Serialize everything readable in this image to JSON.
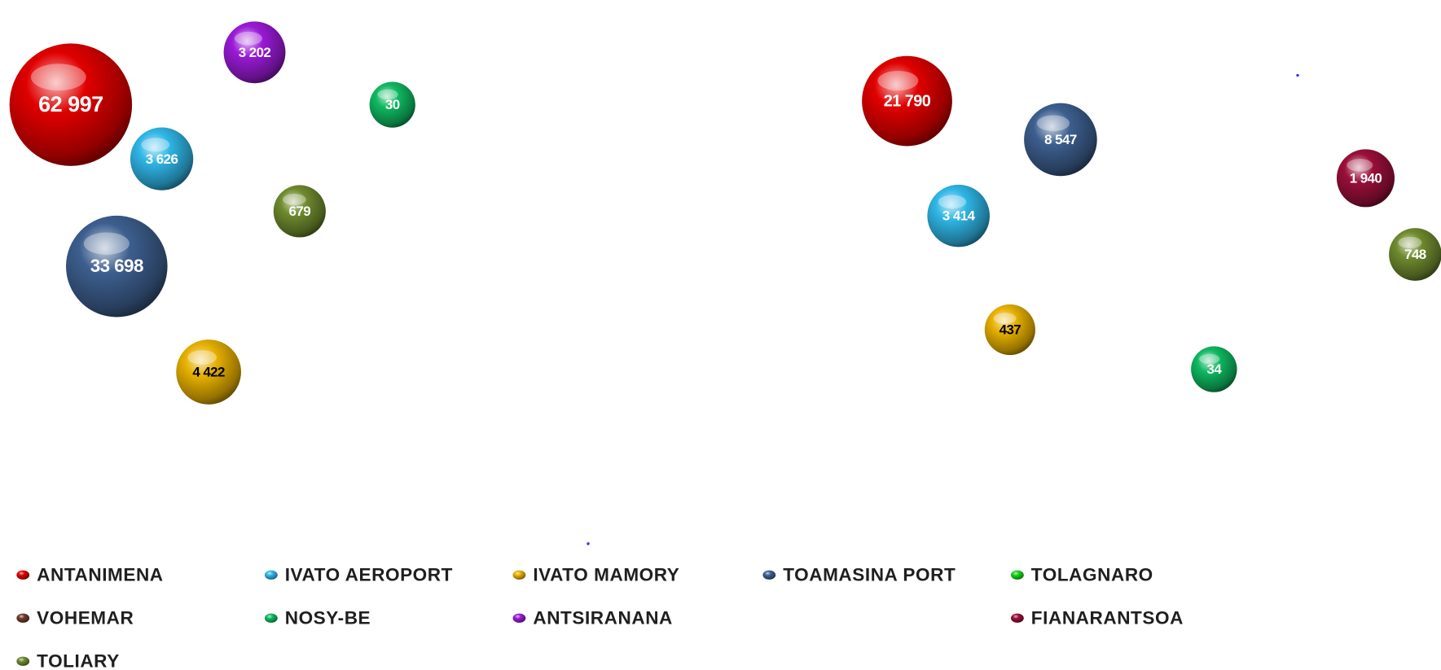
{
  "chart_data": {
    "type": "bubble",
    "series": [
      {
        "name": "ANTANIMENA",
        "color": "#e00000",
        "label_color": "#ffffff",
        "values": [
          62997,
          21790
        ],
        "value_labels": [
          "62 997",
          "21 790"
        ]
      },
      {
        "name": "IVATO AEROPORT",
        "color": "#2fb6e6",
        "label_color": "#ffffff",
        "values": [
          3626,
          3414
        ],
        "value_labels": [
          "3 626",
          "3 414"
        ]
      },
      {
        "name": "IVATO MAMORY",
        "color": "#e6b000",
        "label_color": "#000000",
        "values": [
          4422,
          437
        ],
        "value_labels": [
          "4 422",
          "437"
        ]
      },
      {
        "name": "TOAMASINA PORT",
        "color": "#3d5f8f",
        "label_color": "#ffffff",
        "values": [
          33698,
          8547
        ],
        "value_labels": [
          "33 698",
          "8 547"
        ]
      },
      {
        "name": "TOLAGNARO",
        "color": "#16d416",
        "label_color": "#ffffff",
        "values": [
          null,
          null
        ]
      },
      {
        "name": "VOHEMAR",
        "color": "#6b3a2a",
        "label_color": "#ffffff",
        "values": [
          null,
          null
        ]
      },
      {
        "name": "NOSY-BE",
        "color": "#0fb860",
        "label_color": "#ffffff",
        "values": [
          30,
          34
        ]
      },
      {
        "name": "ANTSIRANANA",
        "color": "#9a1ad6",
        "label_color": "#ffffff",
        "values": [
          3202,
          null
        ],
        "value_labels": [
          "3 202",
          null
        ]
      },
      {
        "name": "FIANARANTSOA",
        "color": "#9a0f3a",
        "label_color": "#ffffff",
        "values": [
          null,
          1940
        ],
        "value_labels": [
          null,
          "1 940"
        ]
      },
      {
        "name": "TOLIARY",
        "color": "#6f8a2e",
        "label_color": "#ffffff",
        "values": [
          679,
          748
        ]
      }
    ]
  }
}
